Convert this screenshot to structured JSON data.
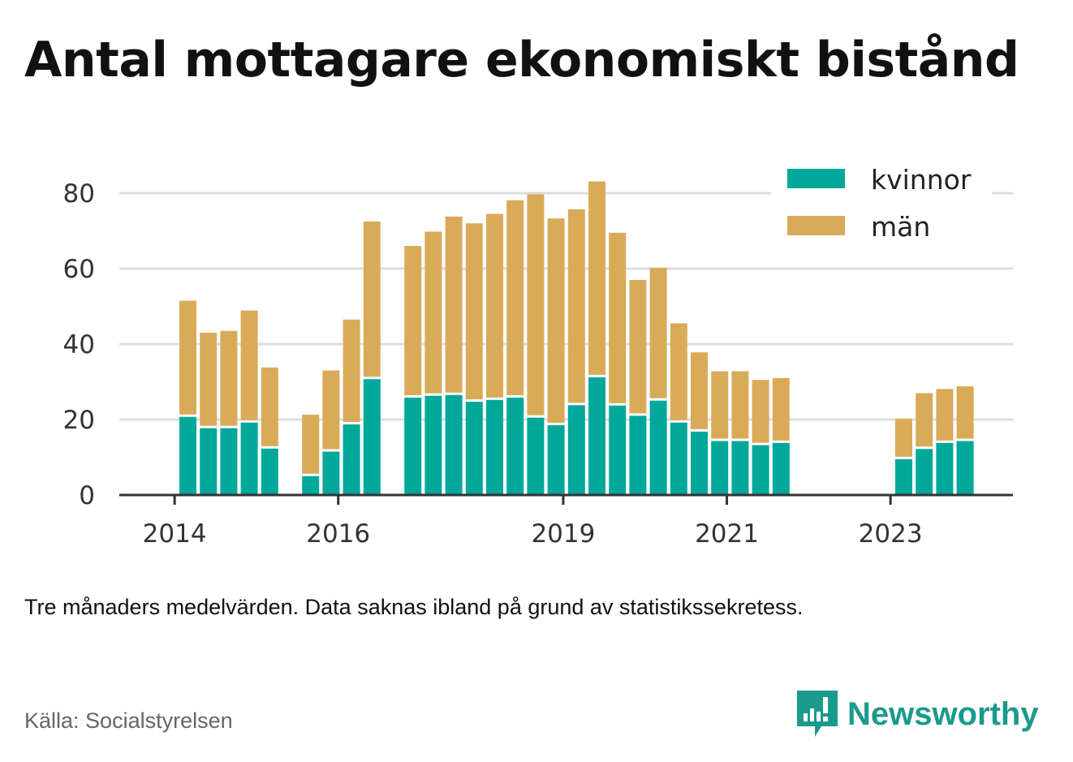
{
  "title": "Antal mottagare ekonomiskt bistånd",
  "note": "Tre månaders medelvärden. Data saknas ibland på grund av statistikssekretess.",
  "source": "Källa: Socialstyrelsen",
  "brand": {
    "name": "Newsworthy",
    "color": "#1a9a8c",
    "icon": "bar-chart-bubble-icon"
  },
  "chart_data": {
    "type": "bar",
    "stacked": true,
    "title": "Antal mottagare ekonomiskt bistånd",
    "xlabel": "",
    "ylabel": "",
    "ylim": [
      0,
      90
    ],
    "yticks": [
      0,
      20,
      40,
      60,
      80
    ],
    "xticks": [
      "2014",
      "2016",
      "2019",
      "2021",
      "2023"
    ],
    "grid": true,
    "legend_position": "top-right",
    "colors": {
      "kvinnor": "#00a89a",
      "män": "#d9ab58"
    },
    "categories": [
      "2014 Q2",
      "2014 Q3",
      "2014 Q4",
      "2015 Q1",
      "2015 Q2",
      "2015 Q3",
      "2015 Q4",
      "2016 Q1",
      "2016 Q2",
      "2016 Q3",
      "2016 Q4",
      "2017 Q1",
      "2017 Q2",
      "2017 Q3",
      "2017 Q4",
      "2018 Q1",
      "2018 Q2",
      "2018 Q3",
      "2018 Q4",
      "2019 Q1",
      "2019 Q2",
      "2019 Q3",
      "2019 Q4",
      "2020 Q1",
      "2020 Q2",
      "2020 Q3",
      "2020 Q4",
      "2021 Q1",
      "2021 Q2",
      "2021 Q3",
      "2021 Q4",
      "2022 Q1",
      "2022 Q2",
      "2022 Q3",
      "2022 Q4",
      "2023 Q1",
      "2023 Q2",
      "2023 Q3",
      "2023 Q4"
    ],
    "series": [
      {
        "name": "kvinnor",
        "values": [
          20.7,
          17.7,
          17.7,
          19.2,
          12.3,
          null,
          5.0,
          11.5,
          18.7,
          30.7,
          null,
          25.8,
          26.3,
          26.5,
          24.7,
          25.2,
          25.8,
          20.5,
          18.5,
          23.8,
          31.2,
          23.7,
          21.0,
          25.0,
          19.2,
          16.8,
          14.3,
          14.3,
          13.2,
          13.8,
          null,
          null,
          null,
          null,
          null,
          9.5,
          12.2,
          13.8,
          14.3
        ]
      },
      {
        "name": "män",
        "values": [
          30.8,
          25.3,
          25.8,
          29.7,
          21.5,
          null,
          16.3,
          21.5,
          27.8,
          41.8,
          null,
          40.2,
          43.5,
          47.3,
          47.3,
          49.3,
          52.3,
          59.2,
          54.8,
          51.9,
          51.9,
          45.8,
          36.0,
          35.2,
          26.3,
          21.0,
          18.5,
          18.5,
          17.3,
          17.2,
          null,
          null,
          null,
          null,
          null,
          10.7,
          14.8,
          14.3,
          14.5
        ]
      }
    ]
  }
}
